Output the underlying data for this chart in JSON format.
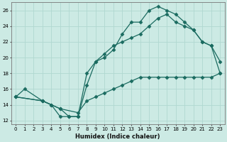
{
  "xlabel": "Humidex (Indice chaleur)",
  "background_color": "#cceae4",
  "grid_color": "#b0d8d0",
  "line_color": "#1a6b60",
  "xlim": [
    -0.5,
    23.5
  ],
  "ylim": [
    11.5,
    27.0
  ],
  "yticks": [
    12,
    14,
    16,
    18,
    20,
    22,
    24,
    26
  ],
  "xticks": [
    0,
    1,
    2,
    3,
    4,
    5,
    6,
    7,
    8,
    9,
    10,
    11,
    12,
    13,
    14,
    15,
    16,
    17,
    18,
    19,
    20,
    21,
    22,
    23
  ],
  "line1_x": [
    0,
    1,
    3,
    4,
    5,
    6,
    7,
    8,
    9,
    10,
    11,
    12,
    13,
    14,
    15,
    16,
    17,
    18,
    19,
    20,
    21,
    22,
    23
  ],
  "line1_y": [
    15.0,
    16.0,
    14.5,
    14.0,
    13.5,
    12.5,
    12.5,
    16.5,
    19.5,
    20.0,
    21.0,
    23.0,
    24.5,
    24.5,
    26.0,
    26.5,
    26.0,
    25.5,
    24.5,
    23.5,
    22.0,
    21.5,
    19.5
  ],
  "line2_x": [
    0,
    3,
    4,
    5,
    6,
    7,
    8,
    9,
    10,
    11,
    12,
    13,
    14,
    15,
    16,
    17,
    18,
    19,
    20,
    21,
    22,
    23
  ],
  "line2_y": [
    15.0,
    14.5,
    14.0,
    12.5,
    12.5,
    12.5,
    18.0,
    19.5,
    20.5,
    21.5,
    22.0,
    22.5,
    23.0,
    24.0,
    25.0,
    25.5,
    24.5,
    24.0,
    23.5,
    22.0,
    21.5,
    18.0
  ],
  "line3_x": [
    0,
    3,
    5,
    7,
    8,
    9,
    10,
    11,
    12,
    13,
    14,
    15,
    16,
    17,
    18,
    19,
    20,
    21,
    22,
    23
  ],
  "line3_y": [
    15.0,
    14.5,
    13.5,
    13.0,
    14.5,
    15.0,
    15.5,
    16.0,
    16.5,
    17.0,
    17.5,
    17.5,
    17.5,
    17.5,
    17.5,
    17.5,
    17.5,
    17.5,
    17.5,
    18.0
  ]
}
